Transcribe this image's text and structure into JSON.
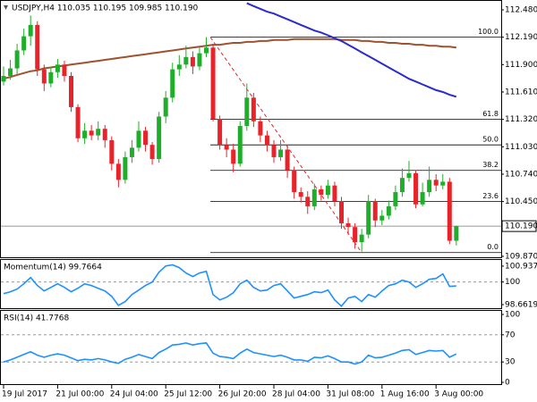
{
  "chart_data": [
    {
      "type": "candlestick",
      "title": "USDJPY,H4  110.035 110.195 109.985 110.190",
      "categories": [
        "19 Jul 2017",
        null,
        null,
        null,
        null,
        null,
        null,
        null,
        "21 Jul 00:00",
        null,
        null,
        null,
        null,
        null,
        null,
        null,
        "24 Jul 04:00",
        null,
        null,
        null,
        null,
        null,
        null,
        null,
        "25 Jul 12:00",
        null,
        null,
        null,
        null,
        null,
        null,
        null,
        "26 Jul 20:00",
        null,
        null,
        null,
        null,
        null,
        null,
        null,
        "28 Jul 04:00",
        null,
        null,
        null,
        null,
        null,
        null,
        null,
        "31 Jul 08:00",
        null,
        null,
        null,
        null,
        null,
        null,
        null,
        "1 Aug 16:00",
        null,
        null,
        null,
        null,
        null,
        null,
        null,
        "3 Aug 00:00",
        null,
        null,
        null
      ],
      "open": [
        111.72,
        111.78,
        111.86,
        112.05,
        112.2,
        112.32,
        111.85,
        111.7,
        111.82,
        111.9,
        111.78,
        111.45,
        111.12,
        111.2,
        111.15,
        111.22,
        111.1,
        110.85,
        110.68,
        110.92,
        111.02,
        111.2,
        111.05,
        110.9,
        111.35,
        111.55,
        111.85,
        111.9,
        111.98,
        111.88,
        112.02,
        112.08,
        111.32,
        111.05,
        111.0,
        110.85,
        111.25,
        111.55,
        111.3,
        111.15,
        111.05,
        110.92,
        111.0,
        110.78,
        110.55,
        110.5,
        110.4,
        110.58,
        110.52,
        110.62,
        110.45,
        110.22,
        110.18,
        110.02,
        110.1,
        110.45,
        110.25,
        110.3,
        110.4,
        110.55,
        110.7,
        110.75,
        110.42,
        110.55,
        110.68,
        110.62,
        110.66,
        110.035
      ],
      "high": [
        111.88,
        111.95,
        112.12,
        112.28,
        112.42,
        112.36,
        111.9,
        111.88,
        111.96,
        111.94,
        111.82,
        111.48,
        111.28,
        111.26,
        111.3,
        111.26,
        111.14,
        110.9,
        110.98,
        111.1,
        111.3,
        111.24,
        111.08,
        111.4,
        111.62,
        111.92,
        112.0,
        112.1,
        112.04,
        112.08,
        112.19,
        112.12,
        111.36,
        111.12,
        111.06,
        111.3,
        111.7,
        111.6,
        111.35,
        111.2,
        111.1,
        111.1,
        111.04,
        110.82,
        110.6,
        110.56,
        110.64,
        110.62,
        110.68,
        110.66,
        110.5,
        110.28,
        110.22,
        110.16,
        110.52,
        110.48,
        110.36,
        110.46,
        110.62,
        110.8,
        110.88,
        110.78,
        110.65,
        110.82,
        110.74,
        110.74,
        110.7,
        110.195
      ],
      "low": [
        111.68,
        111.74,
        111.8,
        112.0,
        112.1,
        111.78,
        111.62,
        111.66,
        111.76,
        111.72,
        111.4,
        111.08,
        111.06,
        111.1,
        111.1,
        111.02,
        110.78,
        110.6,
        110.64,
        110.86,
        110.98,
        110.98,
        110.84,
        110.86,
        111.28,
        111.5,
        111.78,
        111.86,
        111.8,
        111.84,
        111.98,
        111.3,
        111.0,
        110.92,
        110.76,
        110.82,
        111.2,
        111.24,
        111.08,
        110.98,
        110.86,
        110.88,
        110.7,
        110.48,
        110.44,
        110.32,
        110.36,
        110.46,
        110.48,
        110.4,
        110.16,
        110.1,
        109.95,
        109.92,
        110.06,
        110.18,
        110.2,
        110.26,
        110.36,
        110.5,
        110.66,
        110.38,
        110.4,
        110.5,
        110.56,
        110.58,
        110.0,
        109.985
      ],
      "close": [
        111.78,
        111.86,
        112.05,
        112.2,
        112.32,
        111.85,
        111.7,
        111.82,
        111.9,
        111.78,
        111.45,
        111.12,
        111.2,
        111.15,
        111.22,
        111.1,
        110.85,
        110.68,
        110.92,
        111.02,
        111.2,
        111.05,
        110.9,
        111.35,
        111.55,
        111.85,
        111.9,
        111.98,
        111.88,
        112.02,
        112.08,
        111.32,
        111.05,
        111.0,
        110.85,
        111.25,
        111.55,
        111.3,
        111.15,
        111.05,
        110.92,
        111.0,
        110.78,
        110.55,
        110.5,
        110.4,
        110.58,
        110.52,
        110.62,
        110.45,
        110.22,
        110.18,
        110.02,
        110.1,
        110.45,
        110.25,
        110.3,
        110.4,
        110.55,
        110.7,
        110.75,
        110.42,
        110.55,
        110.68,
        110.62,
        110.66,
        110.035,
        110.19
      ],
      "up_color": "#1fae2a",
      "down_color": "#e8232a",
      "lines": [
        {
          "color": "#a0522d",
          "values": [
            111.75,
            111.77,
            111.79,
            111.81,
            111.83,
            111.84,
            111.86,
            111.87,
            111.88,
            111.89,
            111.9,
            111.91,
            111.92,
            111.93,
            111.94,
            111.95,
            111.96,
            111.97,
            111.98,
            111.99,
            112.0,
            112.01,
            112.02,
            112.03,
            112.04,
            112.05,
            112.06,
            112.07,
            112.08,
            112.09,
            112.1,
            112.11,
            112.11,
            112.12,
            112.13,
            112.13,
            112.14,
            112.14,
            112.15,
            112.15,
            112.16,
            112.16,
            112.16,
            112.17,
            112.17,
            112.17,
            112.17,
            112.17,
            112.17,
            112.17,
            112.16,
            112.16,
            112.16,
            112.15,
            112.15,
            112.14,
            112.14,
            112.13,
            112.13,
            112.12,
            112.12,
            112.11,
            112.11,
            112.1,
            112.1,
            112.09,
            112.09,
            112.08
          ]
        },
        {
          "color": "#2a2ad0",
          "values": [
            null,
            null,
            null,
            null,
            null,
            null,
            null,
            null,
            null,
            null,
            null,
            null,
            null,
            null,
            null,
            null,
            null,
            null,
            null,
            null,
            null,
            null,
            null,
            null,
            null,
            null,
            null,
            null,
            null,
            null,
            null,
            null,
            null,
            null,
            null,
            null,
            112.55,
            112.52,
            112.49,
            112.46,
            112.44,
            112.41,
            112.38,
            112.35,
            112.32,
            112.29,
            112.26,
            112.24,
            112.21,
            112.18,
            112.15,
            112.11,
            112.07,
            112.03,
            111.99,
            111.95,
            111.91,
            111.87,
            111.83,
            111.79,
            111.75,
            111.72,
            111.69,
            111.66,
            111.63,
            111.61,
            111.58,
            111.56
          ]
        }
      ],
      "current_price": {
        "value": 110.19,
        "label": "110.190"
      },
      "fib_levels": [
        {
          "level": {
            "value": 100,
            "label": "100.0"
          },
          "price": 112.19
        },
        {
          "level": {
            "value": 61.8,
            "label": "61.8"
          },
          "price": 111.32
        },
        {
          "level": {
            "value": 50,
            "label": "50.0"
          },
          "price": 111.05
        },
        {
          "level": {
            "value": 38.2,
            "label": "38.2"
          },
          "price": 110.78
        },
        {
          "level": {
            "value": 23.6,
            "label": "23.6"
          },
          "price": 110.45
        },
        {
          "level": {
            "value": 0,
            "label": "0.0"
          },
          "price": 109.91
        }
      ],
      "ylim": [
        109.86,
        112.565
      ],
      "yticks": [
        {
          "value": 112.48,
          "label": "112.480"
        },
        {
          "value": 112.19,
          "label": "112.190"
        },
        {
          "value": 111.9,
          "label": "111.900"
        },
        {
          "value": 111.61,
          "label": "111.610"
        },
        {
          "value": 111.32,
          "label": "111.320"
        },
        {
          "value": 111.03,
          "label": "111.030"
        },
        {
          "value": 110.74,
          "label": "110.740"
        },
        {
          "value": 110.45,
          "label": "110.450"
        },
        {
          "value": 109.87,
          "label": "109.870"
        }
      ]
    },
    {
      "type": "line",
      "title": "Momentum(14) 99.7664",
      "color": "#1e90ff",
      "values": [
        99.31,
        99.42,
        99.58,
        99.89,
        100.26,
        99.79,
        99.47,
        99.68,
        99.89,
        99.68,
        99.42,
        99.63,
        99.89,
        99.79,
        99.63,
        99.47,
        99.15,
        98.62,
        98.84,
        99.26,
        99.52,
        99.79,
        100.0,
        100.58,
        100.95,
        101.01,
        100.85,
        100.53,
        100.32,
        100.53,
        100.63,
        99.26,
        98.94,
        99.1,
        99.37,
        99.89,
        100.11,
        99.68,
        99.47,
        99.52,
        99.79,
        99.89,
        99.47,
        99.05,
        99.15,
        99.26,
        99.42,
        99.37,
        99.52,
        98.94,
        98.57,
        99.05,
        99.15,
        98.84,
        99.26,
        99.1,
        99.47,
        99.79,
        99.89,
        100.11,
        100.0,
        99.68,
        99.89,
        100.16,
        100.21,
        100.48,
        99.74,
        99.7664
      ],
      "dashed_levels": [
        100
      ],
      "ylim": [
        98.45,
        101.25
      ],
      "yticks": [
        100.9372,
        100,
        98.6619
      ]
    },
    {
      "type": "line",
      "title": "RSI(14) 41.7768",
      "color": "#1e90ff",
      "values": [
        30,
        33,
        37,
        41,
        45,
        40,
        37,
        40,
        42,
        40,
        36,
        32,
        34,
        33,
        35,
        33,
        30,
        28,
        34,
        37,
        41,
        38,
        35,
        44,
        49,
        55,
        56,
        58,
        55,
        57,
        58,
        43,
        38,
        37,
        35,
        43,
        49,
        44,
        42,
        40,
        38,
        40,
        37,
        33,
        33,
        31,
        37,
        36,
        39,
        35,
        30,
        30,
        27,
        30,
        40,
        36,
        37,
        40,
        43,
        47,
        48,
        41,
        44,
        47,
        46,
        47,
        37,
        41.7768
      ],
      "dashed_levels": [
        70,
        30
      ],
      "ylim": [
        0,
        100
      ],
      "yticks": [
        100,
        70,
        30,
        0
      ]
    }
  ]
}
